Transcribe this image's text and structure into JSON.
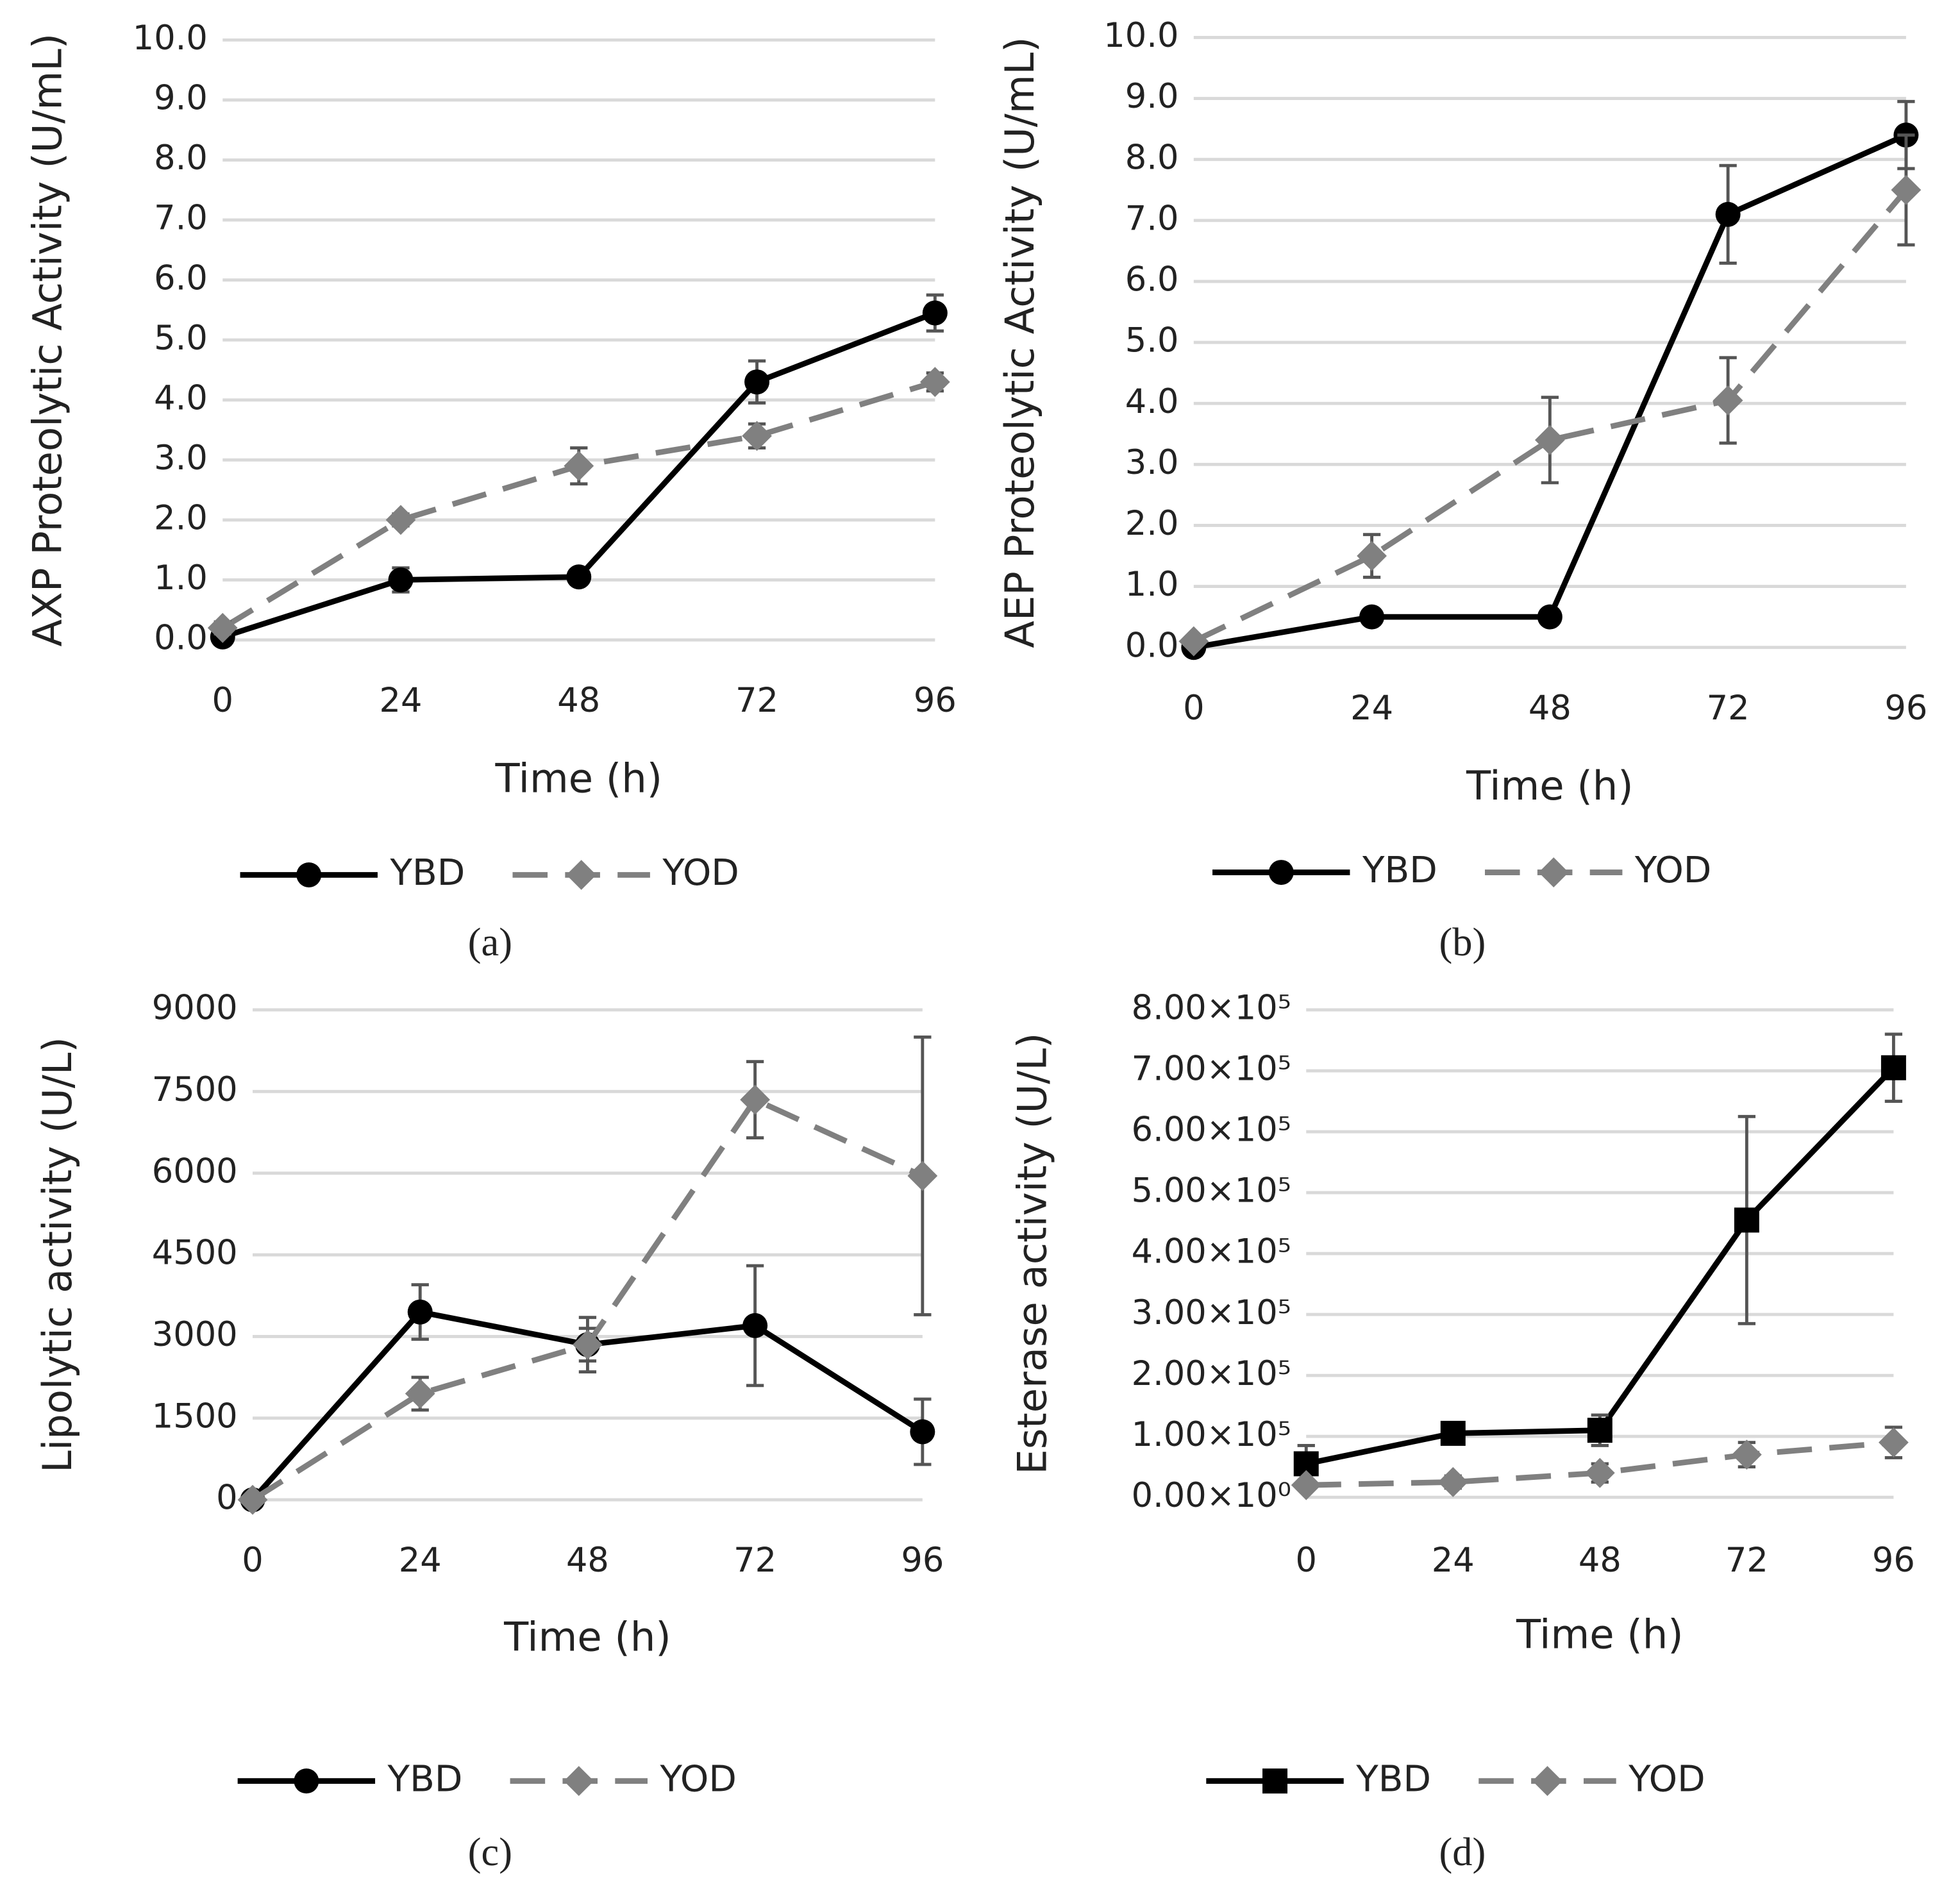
{
  "chart_data": [
    {
      "type": "line",
      "caption": "(a)",
      "ylabel": "AXP Proteolytic Activity (U/mL)",
      "xlabel": "Time (h)",
      "x": [
        0,
        24,
        48,
        72,
        96
      ],
      "xlim": [
        0,
        96
      ],
      "xticks": [
        0,
        24,
        48,
        72,
        96
      ],
      "ylim": [
        0,
        10
      ],
      "yticks": [
        {
          "value": 0,
          "label": "0.0"
        },
        {
          "value": 1,
          "label": "1.0"
        },
        {
          "value": 2,
          "label": "2.0"
        },
        {
          "value": 3,
          "label": "3.0"
        },
        {
          "value": 4,
          "label": "4.0"
        },
        {
          "value": 5,
          "label": "5.0"
        },
        {
          "value": 6,
          "label": "6.0"
        },
        {
          "value": 7,
          "label": "7.0"
        },
        {
          "value": 8,
          "label": "8.0"
        },
        {
          "value": 9,
          "label": "9.0"
        },
        {
          "value": 10,
          "label": "10.0"
        }
      ],
      "grid": true,
      "series": [
        {
          "name": "YBD",
          "color": "#000000",
          "marker": "circle",
          "dashed": false,
          "values": [
            0.05,
            1.0,
            1.05,
            4.3,
            5.45
          ],
          "errors": [
            0.05,
            0.2,
            0.05,
            0.35,
            0.3
          ]
        },
        {
          "name": "YOD",
          "color": "#808080",
          "marker": "diamond",
          "dashed": true,
          "values": [
            0.2,
            2.0,
            2.9,
            3.4,
            4.3
          ],
          "errors": [
            0.1,
            0.1,
            0.3,
            0.2,
            0.15
          ]
        }
      ]
    },
    {
      "type": "line",
      "caption": "(b)",
      "ylabel": "AEP Proteolytic Activity (U/mL)",
      "xlabel": "Time (h)",
      "x": [
        0,
        24,
        48,
        72,
        96
      ],
      "xlim": [
        0,
        96
      ],
      "xticks": [
        0,
        24,
        48,
        72,
        96
      ],
      "ylim": [
        0,
        10
      ],
      "yticks": [
        {
          "value": 0,
          "label": "0.0"
        },
        {
          "value": 1,
          "label": "1.0"
        },
        {
          "value": 2,
          "label": "2.0"
        },
        {
          "value": 3,
          "label": "3.0"
        },
        {
          "value": 4,
          "label": "4.0"
        },
        {
          "value": 5,
          "label": "5.0"
        },
        {
          "value": 6,
          "label": "6.0"
        },
        {
          "value": 7,
          "label": "7.0"
        },
        {
          "value": 8,
          "label": "8.0"
        },
        {
          "value": 9,
          "label": "9.0"
        },
        {
          "value": 10,
          "label": "10.0"
        }
      ],
      "grid": true,
      "series": [
        {
          "name": "YBD",
          "color": "#000000",
          "marker": "circle",
          "dashed": false,
          "values": [
            0,
            0.5,
            0.5,
            7.1,
            8.4
          ],
          "errors": [
            0.05,
            0.1,
            0.05,
            0.8,
            0.55
          ]
        },
        {
          "name": "YOD",
          "color": "#808080",
          "marker": "diamond",
          "dashed": true,
          "values": [
            0.1,
            1.5,
            3.4,
            4.05,
            7.5
          ],
          "errors": [
            0.05,
            0.35,
            0.7,
            0.7,
            0.9
          ]
        }
      ]
    },
    {
      "type": "line",
      "caption": "(c)",
      "ylabel": "Lipolytic activity (U/L)",
      "xlabel": "Time (h)",
      "x": [
        0,
        24,
        48,
        72,
        96
      ],
      "xlim": [
        0,
        96
      ],
      "xticks": [
        0,
        24,
        48,
        72,
        96
      ],
      "ylim": [
        0,
        9000
      ],
      "yticks": [
        0,
        1500,
        3000,
        4500,
        6000,
        7500,
        9000
      ],
      "grid": true,
      "series": [
        {
          "name": "YBD",
          "color": "#000000",
          "marker": "circle",
          "dashed": false,
          "values": [
            0,
            3450,
            2850,
            3200,
            1250
          ],
          "errors": [
            0,
            500,
            300,
            1100,
            600
          ]
        },
        {
          "name": "YOD",
          "color": "#808080",
          "marker": "diamond",
          "dashed": true,
          "values": [
            0,
            1950,
            2850,
            7350,
            5950
          ],
          "errors": [
            0,
            300,
            500,
            700,
            2550
          ]
        }
      ]
    },
    {
      "type": "line",
      "caption": "(d)",
      "ylabel": "Esterase activity (U/L)",
      "xlabel": "Time (h)",
      "x": [
        0,
        24,
        48,
        72,
        96
      ],
      "xlim": [
        0,
        96
      ],
      "xticks": [
        0,
        24,
        48,
        72,
        96
      ],
      "ylim": [
        0,
        800000
      ],
      "yticks": [
        {
          "value": 0,
          "label": "0.00×10⁰"
        },
        {
          "value": 100000,
          "label": "1.00×10⁵"
        },
        {
          "value": 200000,
          "label": "2.00×10⁵"
        },
        {
          "value": 300000,
          "label": "3.00×10⁵"
        },
        {
          "value": 400000,
          "label": "4.00×10⁵"
        },
        {
          "value": 500000,
          "label": "5.00×10⁵"
        },
        {
          "value": 600000,
          "label": "6.00×10⁵"
        },
        {
          "value": 700000,
          "label": "7.00×10⁵"
        },
        {
          "value": 800000,
          "label": "8.00×10⁵"
        }
      ],
      "grid": true,
      "series": [
        {
          "name": "YBD",
          "color": "#000000",
          "marker": "square",
          "dashed": false,
          "values": [
            55000,
            105000,
            110000,
            455000,
            705000
          ],
          "errors": [
            30000,
            10000,
            25000,
            170000,
            55000
          ]
        },
        {
          "name": "YOD",
          "color": "#808080",
          "marker": "diamond",
          "dashed": true,
          "values": [
            20000,
            25000,
            40000,
            70000,
            90000
          ],
          "errors": [
            5000,
            10000,
            15000,
            20000,
            25000
          ]
        }
      ]
    }
  ]
}
